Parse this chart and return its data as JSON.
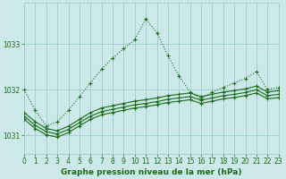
{
  "title": "Graphe pression niveau de la mer (hPa)",
  "background_color": "#cce8e8",
  "grid_color": "#99cccc",
  "line_color": "#1a6b1a",
  "x_min": 0,
  "x_max": 23,
  "y_min": 1030.6,
  "y_max": 1033.9,
  "yticks": [
    1031,
    1032,
    1033
  ],
  "xticks": [
    0,
    1,
    2,
    3,
    4,
    5,
    6,
    7,
    8,
    9,
    10,
    11,
    12,
    13,
    14,
    15,
    16,
    17,
    18,
    19,
    20,
    21,
    22,
    23
  ],
  "series1": [
    1032.0,
    1031.55,
    1031.2,
    1031.3,
    1031.55,
    1031.85,
    1032.15,
    1032.45,
    1032.7,
    1032.9,
    1033.1,
    1033.55,
    1033.25,
    1032.75,
    1032.3,
    1031.95,
    1031.8,
    1031.95,
    1032.05,
    1032.15,
    1032.25,
    1032.4,
    1032.0,
    1032.05
  ],
  "series2": [
    1031.5,
    1031.3,
    1031.15,
    1031.1,
    1031.2,
    1031.35,
    1031.5,
    1031.6,
    1031.65,
    1031.7,
    1031.75,
    1031.78,
    1031.82,
    1031.87,
    1031.9,
    1031.93,
    1031.85,
    1031.9,
    1031.95,
    1031.98,
    1032.02,
    1032.08,
    1031.95,
    1031.98
  ],
  "series3": [
    1031.42,
    1031.22,
    1031.08,
    1031.03,
    1031.13,
    1031.28,
    1031.42,
    1031.52,
    1031.57,
    1031.62,
    1031.67,
    1031.7,
    1031.74,
    1031.79,
    1031.82,
    1031.85,
    1031.77,
    1031.82,
    1031.87,
    1031.9,
    1031.94,
    1032.0,
    1031.87,
    1031.9
  ],
  "series4": [
    1031.35,
    1031.15,
    1031.01,
    1030.96,
    1031.06,
    1031.21,
    1031.35,
    1031.45,
    1031.5,
    1031.55,
    1031.6,
    1031.63,
    1031.67,
    1031.72,
    1031.75,
    1031.78,
    1031.7,
    1031.75,
    1031.8,
    1031.83,
    1031.87,
    1031.93,
    1031.8,
    1031.83
  ]
}
